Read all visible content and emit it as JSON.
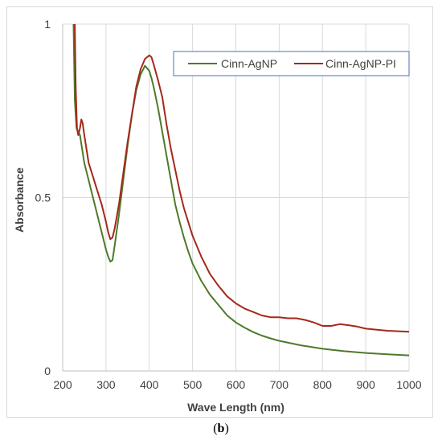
{
  "caption": {
    "open": "(",
    "letter": "b",
    "close": ")"
  },
  "chart_data": {
    "type": "line",
    "xlabel": "Wave Length (nm)",
    "ylabel": "Absorbance",
    "xlim": [
      200,
      1000
    ],
    "ylim": [
      0,
      1
    ],
    "x_ticks": [
      "200",
      "300",
      "400",
      "500",
      "600",
      "700",
      "800",
      "900",
      "1000"
    ],
    "y_ticks": [
      "0",
      "0.5",
      "1"
    ],
    "grid": "vertical major gridlines and horizontal major gridlines",
    "legend_position": "top-right",
    "series": [
      {
        "name": "Cinn-AgNP",
        "color": "#4f7a28",
        "x": [
          225,
          228,
          232,
          240,
          250,
          260,
          270,
          280,
          290,
          300,
          305,
          310,
          315,
          320,
          330,
          340,
          350,
          360,
          370,
          380,
          390,
          400,
          405,
          410,
          420,
          430,
          440,
          450,
          460,
          470,
          480,
          490,
          500,
          520,
          540,
          560,
          580,
          600,
          620,
          640,
          660,
          680,
          700,
          750,
          800,
          850,
          900,
          950,
          1000
        ],
        "y": [
          1.0,
          0.78,
          0.7,
          0.68,
          0.6,
          0.55,
          0.5,
          0.45,
          0.4,
          0.35,
          0.33,
          0.315,
          0.32,
          0.36,
          0.45,
          0.55,
          0.65,
          0.74,
          0.81,
          0.855,
          0.88,
          0.865,
          0.845,
          0.82,
          0.76,
          0.69,
          0.62,
          0.55,
          0.48,
          0.43,
          0.385,
          0.345,
          0.31,
          0.26,
          0.22,
          0.19,
          0.16,
          0.14,
          0.125,
          0.112,
          0.102,
          0.094,
          0.087,
          0.074,
          0.064,
          0.057,
          0.052,
          0.048,
          0.045
        ]
      },
      {
        "name": "Cinn-AgNP-PI",
        "color": "#a5281b",
        "x": [
          228,
          230,
          233,
          236,
          240,
          243,
          246,
          250,
          255,
          260,
          270,
          280,
          290,
          300,
          305,
          310,
          315,
          320,
          330,
          340,
          350,
          360,
          370,
          380,
          390,
          400,
          405,
          410,
          420,
          430,
          440,
          450,
          460,
          470,
          480,
          490,
          500,
          520,
          540,
          560,
          580,
          600,
          620,
          640,
          660,
          680,
          700,
          720,
          740,
          760,
          780,
          800,
          820,
          840,
          860,
          880,
          900,
          950,
          1000
        ],
        "y": [
          1.0,
          0.82,
          0.7,
          0.68,
          0.7,
          0.725,
          0.715,
          0.68,
          0.64,
          0.6,
          0.56,
          0.52,
          0.48,
          0.43,
          0.4,
          0.38,
          0.385,
          0.41,
          0.48,
          0.57,
          0.66,
          0.74,
          0.82,
          0.87,
          0.9,
          0.91,
          0.905,
          0.885,
          0.84,
          0.79,
          0.71,
          0.64,
          0.58,
          0.52,
          0.47,
          0.43,
          0.39,
          0.33,
          0.28,
          0.245,
          0.215,
          0.195,
          0.18,
          0.17,
          0.16,
          0.155,
          0.155,
          0.152,
          0.152,
          0.147,
          0.14,
          0.13,
          0.13,
          0.135,
          0.132,
          0.128,
          0.122,
          0.116,
          0.113
        ]
      }
    ]
  }
}
